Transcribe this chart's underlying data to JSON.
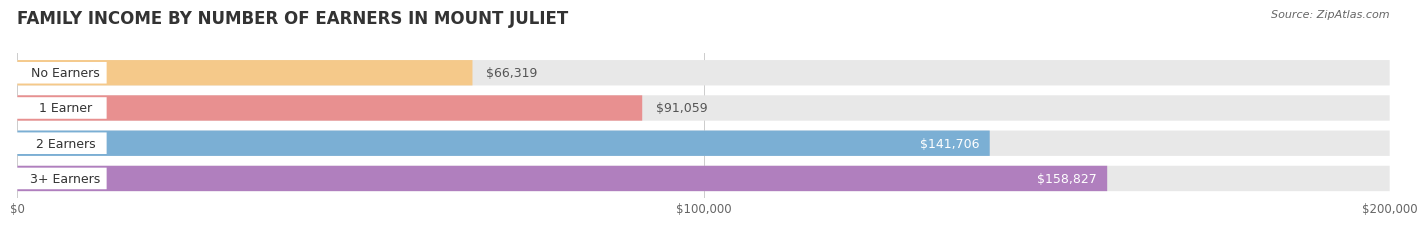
{
  "title": "FAMILY INCOME BY NUMBER OF EARNERS IN MOUNT JULIET",
  "source": "Source: ZipAtlas.com",
  "categories": [
    "No Earners",
    "1 Earner",
    "2 Earners",
    "3+ Earners"
  ],
  "values": [
    66319,
    91059,
    141706,
    158827
  ],
  "bar_colors": [
    "#f5c98a",
    "#e89090",
    "#7bafd4",
    "#b07fbe"
  ],
  "track_color": "#e8e8e8",
  "xlim": [
    0,
    200000
  ],
  "xticks": [
    0,
    100000,
    200000
  ],
  "xtick_labels": [
    "$0",
    "$100,000",
    "$200,000"
  ],
  "label_inside": [
    false,
    false,
    true,
    true
  ],
  "background_color": "#ffffff",
  "title_fontsize": 12,
  "bar_height": 0.72,
  "value_fontsize": 9,
  "cat_fontsize": 9
}
